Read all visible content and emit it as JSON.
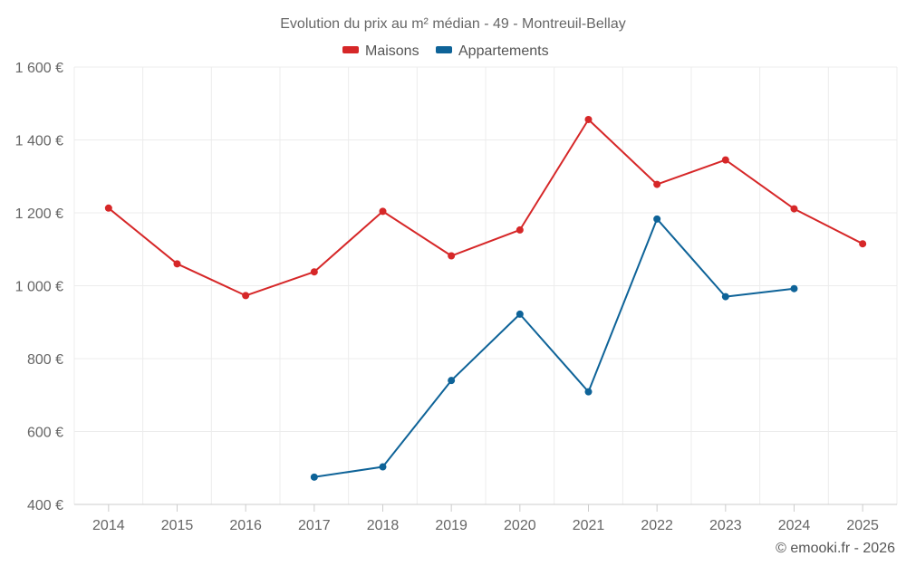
{
  "chart_data": {
    "type": "line",
    "title": "Evolution du prix au m² médian - 49 - Montreuil-Bellay",
    "categories": [
      "2014",
      "2015",
      "2016",
      "2017",
      "2018",
      "2019",
      "2020",
      "2021",
      "2022",
      "2023",
      "2024",
      "2025"
    ],
    "y_tick_labels": [
      "400 €",
      "600 €",
      "800 €",
      "1 000 €",
      "1 200 €",
      "1 400 €",
      "1 600 €"
    ],
    "y_ticks": [
      400,
      600,
      800,
      1000,
      1200,
      1400,
      1600
    ],
    "ylim": [
      400,
      1600
    ],
    "grid": true,
    "legend_position": "top-center",
    "series": [
      {
        "name": "Maisons",
        "color": "#d62728",
        "values": [
          1213,
          1060,
          973,
          1038,
          1204,
          1082,
          1153,
          1456,
          1278,
          1345,
          1211,
          1115
        ]
      },
      {
        "name": "Appartements",
        "color": "#0e6398",
        "values": [
          null,
          null,
          null,
          475,
          503,
          740,
          922,
          709,
          1183,
          970,
          992,
          null
        ]
      }
    ]
  },
  "credit": "© emooki.fr - 2026"
}
